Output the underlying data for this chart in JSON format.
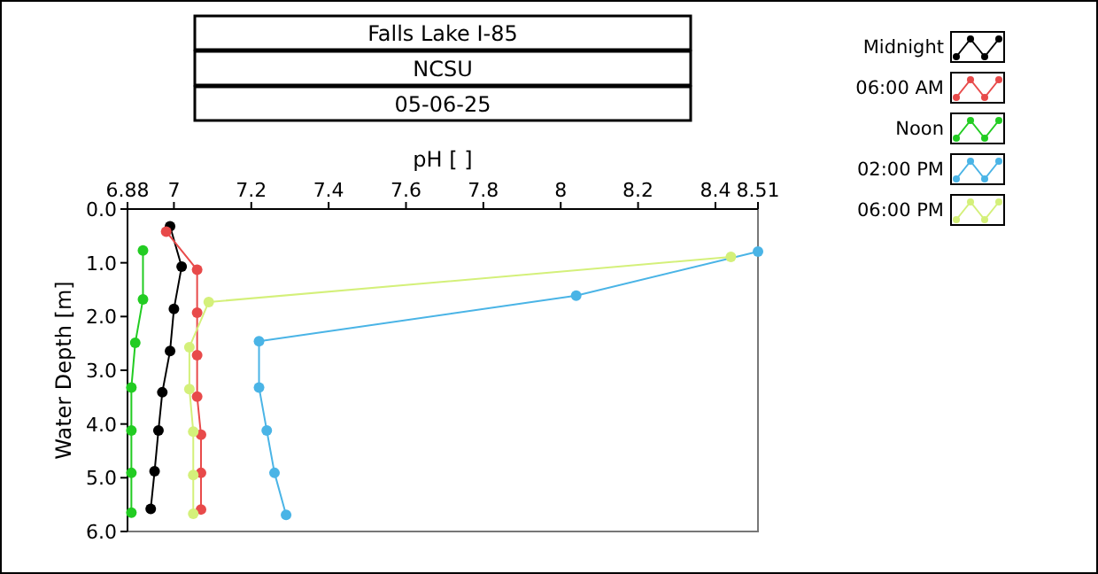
{
  "chart_data": {
    "type": "line",
    "title": "Falls Lake I-85",
    "subtitle": "NCSU",
    "annotations": [
      "05-06-25"
    ],
    "xlabel": "pH [ ]",
    "ylabel": "Water Depth [m]",
    "xlim": [
      6.88,
      8.51
    ],
    "xticks": [
      6.88,
      7,
      7.2,
      7.4,
      7.6,
      7.8,
      8,
      8.2,
      8.4,
      8.51
    ],
    "ylim": [
      6,
      0
    ],
    "yticks": [
      {
        "value": 0,
        "label": "0.0"
      },
      {
        "value": 1,
        "label": "1.0"
      },
      {
        "value": 2,
        "label": "2.0"
      },
      {
        "value": 3,
        "label": "3.0"
      },
      {
        "value": 4,
        "label": "4.0"
      },
      {
        "value": 5,
        "label": "5.0"
      },
      {
        "value": 6,
        "label": "6.0"
      }
    ],
    "legend": "right",
    "marker": "circle",
    "line_style": "solid",
    "grid": false,
    "series": [
      {
        "name": "Midnight",
        "color": "#000000",
        "x": [
          6.99,
          7.02,
          7.0,
          6.99,
          6.97,
          6.96,
          6.95,
          6.94
        ],
        "values": [
          0.32,
          1.07,
          1.86,
          2.64,
          3.41,
          4.12,
          4.88,
          5.58
        ]
      },
      {
        "name": "06:00 AM",
        "color": "#e84a4a",
        "x": [
          6.98,
          7.06,
          7.06,
          7.06,
          7.06,
          7.07,
          7.07,
          7.07
        ],
        "values": [
          0.42,
          1.13,
          1.93,
          2.72,
          3.49,
          4.2,
          4.91,
          5.59
        ]
      },
      {
        "name": "Noon",
        "color": "#22cc22",
        "x": [
          6.92,
          6.92,
          6.9,
          6.89,
          6.89,
          6.89,
          6.89
        ],
        "values": [
          0.77,
          1.68,
          2.49,
          3.32,
          4.12,
          4.91,
          5.65
        ]
      },
      {
        "name": "02:00 PM",
        "color": "#4ab4e6",
        "x": [
          8.51,
          8.04,
          7.22,
          7.22,
          7.24,
          7.26,
          7.29
        ],
        "values": [
          0.79,
          1.61,
          2.46,
          3.32,
          4.12,
          4.91,
          5.69
        ]
      },
      {
        "name": "06:00 PM",
        "color": "#d4f07a",
        "x": [
          8.44,
          7.09,
          7.04,
          7.04,
          7.05,
          7.05,
          7.05
        ],
        "values": [
          0.89,
          1.73,
          2.57,
          3.35,
          4.14,
          4.95,
          5.67
        ]
      }
    ]
  }
}
